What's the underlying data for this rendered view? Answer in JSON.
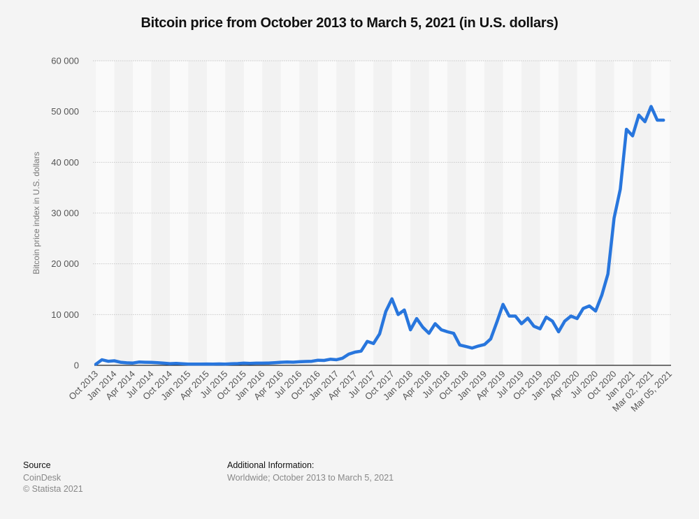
{
  "chart_data": {
    "type": "line",
    "title": "Bitcoin price from October 2013 to March 5, 2021 (in U.S. dollars)",
    "xlabel": "",
    "ylabel": "Bitcoin price index in U.S. dollars",
    "ylim": [
      0,
      60000
    ],
    "y_ticks": [
      0,
      10000,
      20000,
      30000,
      40000,
      50000,
      60000
    ],
    "y_tick_labels": [
      "0",
      "10 000",
      "20 000",
      "30 000",
      "40 000",
      "50 000",
      "60 000"
    ],
    "x_tick_labels": [
      "Oct 2013",
      "Jan 2014",
      "Apr 2014",
      "Jul 2014",
      "Oct 2014",
      "Jan 2015",
      "Apr 2015",
      "Jul 2015",
      "Oct 2015",
      "Jan 2016",
      "Apr 2016",
      "Jul 2016",
      "Oct 2016",
      "Jan 2017",
      "Apr 2017",
      "Jul 2017",
      "Oct 2017",
      "Jan 2018",
      "Apr 2018",
      "Jul 2018",
      "Oct 2018",
      "Jan 2019",
      "Apr 2019",
      "Jul 2019",
      "Oct 2019",
      "Jan 2020",
      "Apr 2020",
      "Jul 2020",
      "Oct 2020",
      "Jan 2021",
      "Mar 02, 2021",
      "Mar 05, 2021"
    ],
    "grid": true,
    "color": "#2876dd",
    "series": [
      {
        "name": "Bitcoin price",
        "x": [
          0,
          1,
          2,
          3,
          4,
          5,
          6,
          7,
          8,
          9,
          10,
          11,
          12,
          13,
          14,
          15,
          16,
          17,
          18,
          19,
          20,
          21,
          22,
          23,
          24,
          25,
          26,
          27,
          28,
          29,
          30,
          31,
          32,
          33,
          34,
          35,
          36,
          37,
          38,
          39,
          40,
          41,
          42,
          43,
          44,
          45,
          46,
          47,
          48,
          49,
          50,
          51,
          52,
          53,
          54,
          55,
          56,
          57,
          58,
          59,
          60,
          61,
          62,
          63,
          64,
          65,
          66,
          67,
          68,
          69,
          70,
          71,
          72,
          73,
          74,
          75,
          76,
          77,
          78,
          79,
          80,
          81,
          82,
          83,
          84,
          85,
          86,
          87,
          88,
          89,
          90,
          91,
          92
        ],
        "values": [
          200,
          1100,
          800,
          900,
          600,
          500,
          450,
          650,
          600,
          580,
          520,
          420,
          330,
          380,
          320,
          250,
          230,
          240,
          260,
          230,
          280,
          240,
          300,
          350,
          420,
          380,
          430,
          420,
          450,
          520,
          600,
          650,
          620,
          700,
          750,
          800,
          1000,
          960,
          1200,
          1100,
          1400,
          2200,
          2600,
          2800,
          4700,
          4300,
          6200,
          10600,
          13100,
          10000,
          10900,
          7000,
          9200,
          7500,
          6300,
          8200,
          7000,
          6600,
          6300,
          4000,
          3700,
          3400,
          3800,
          4100,
          5200,
          8500,
          12000,
          9700,
          9700,
          8200,
          9300,
          7700,
          7200,
          9500,
          8700,
          6600,
          8700,
          9700,
          9200,
          11200,
          11700,
          10700,
          13800,
          18000,
          29000,
          34700,
          46500,
          45200,
          49300,
          48000,
          51000,
          48300,
          48300
        ]
      }
    ]
  },
  "footer": {
    "source_heading": "Source",
    "source_name": "CoinDesk",
    "copyright": "© Statista 2021",
    "info_heading": "Additional Information:",
    "info_text": "Worldwide; October 2013 to March 5, 2021"
  }
}
